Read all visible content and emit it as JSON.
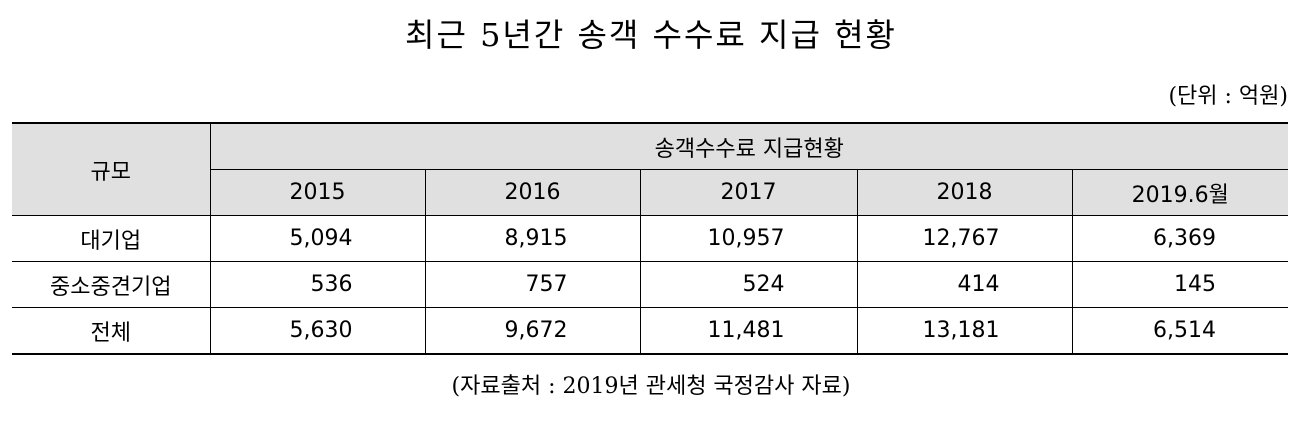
{
  "header": {
    "title": "최근 5년간 송객 수수료 지급 현황",
    "unit": "(단위 : 억원)"
  },
  "table": {
    "row_header": "규모",
    "group_header": "송객수수료 지급현황",
    "columns": [
      "2015",
      "2016",
      "2017",
      "2018",
      "2019.6월"
    ],
    "rows": [
      [
        "대기업",
        "5,094",
        "8,915",
        "10,957",
        "12,767",
        "6,369"
      ],
      [
        "중소중견기업",
        "536",
        "757",
        "524",
        "414",
        "145"
      ],
      [
        "전체",
        "5,630",
        "9,672",
        "11,481",
        "13,181",
        "6,514"
      ]
    ]
  },
  "footer": {
    "source": "(자료출처 : 2019년 관세청 국정감사 자료)"
  }
}
